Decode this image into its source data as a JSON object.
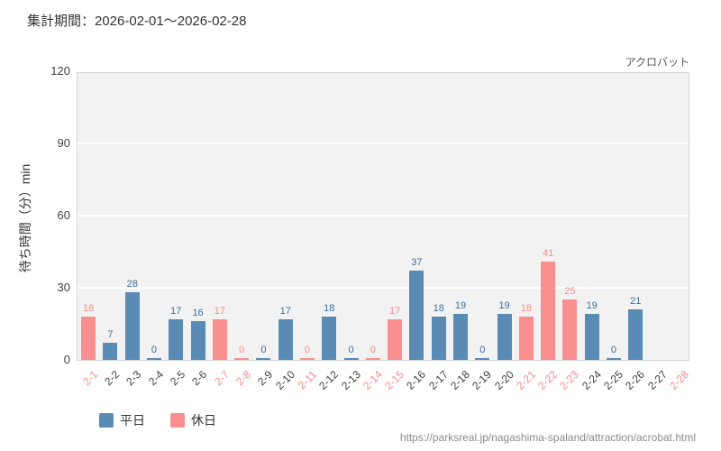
{
  "header": {
    "title": "集計期間：2026-02-01〜2026-02-28"
  },
  "chart_data": {
    "type": "bar",
    "title": "アクロバット",
    "ylabel": "待ち時間（分）min",
    "ylim": [
      0,
      120
    ],
    "yticks": [
      0,
      30,
      60,
      90,
      120
    ],
    "legend": [
      {
        "label": "平日",
        "color": "#5a8bb5",
        "type": "weekday"
      },
      {
        "label": "休日",
        "color": "#f98f8f",
        "type": "holiday"
      }
    ],
    "value_label_colors": {
      "weekday": "#3e6f9e",
      "holiday": "#fa8a8a"
    },
    "tick_colors": {
      "weekday": "#3d3d3d",
      "holiday": "#fa8a8a"
    },
    "categories": [
      "2-1",
      "2-2",
      "2-3",
      "2-4",
      "2-5",
      "2-6",
      "2-7",
      "2-8",
      "2-9",
      "2-10",
      "2-11",
      "2-12",
      "2-13",
      "2-14",
      "2-15",
      "2-16",
      "2-17",
      "2-18",
      "2-19",
      "2-20",
      "2-21",
      "2-22",
      "2-23",
      "2-24",
      "2-25",
      "2-26",
      "2-27",
      "2-28"
    ],
    "values": [
      18,
      7,
      28,
      0,
      17,
      16,
      17,
      0,
      0,
      17,
      0,
      18,
      0,
      0,
      17,
      37,
      18,
      19,
      0,
      19,
      18,
      41,
      25,
      19,
      0,
      21,
      null,
      null
    ],
    "day_types": [
      "holiday",
      "weekday",
      "weekday",
      "weekday",
      "weekday",
      "weekday",
      "holiday",
      "holiday",
      "weekday",
      "weekday",
      "holiday",
      "weekday",
      "weekday",
      "holiday",
      "holiday",
      "weekday",
      "weekday",
      "weekday",
      "weekday",
      "weekday",
      "holiday",
      "holiday",
      "holiday",
      "weekday",
      "weekday",
      "weekday",
      "weekday",
      "holiday"
    ],
    "grid": true,
    "legend_position": "bottom-left"
  },
  "footer": {
    "url": "https://parksreal.jp/nagashima-spaland/attraction/acrobat.html"
  }
}
